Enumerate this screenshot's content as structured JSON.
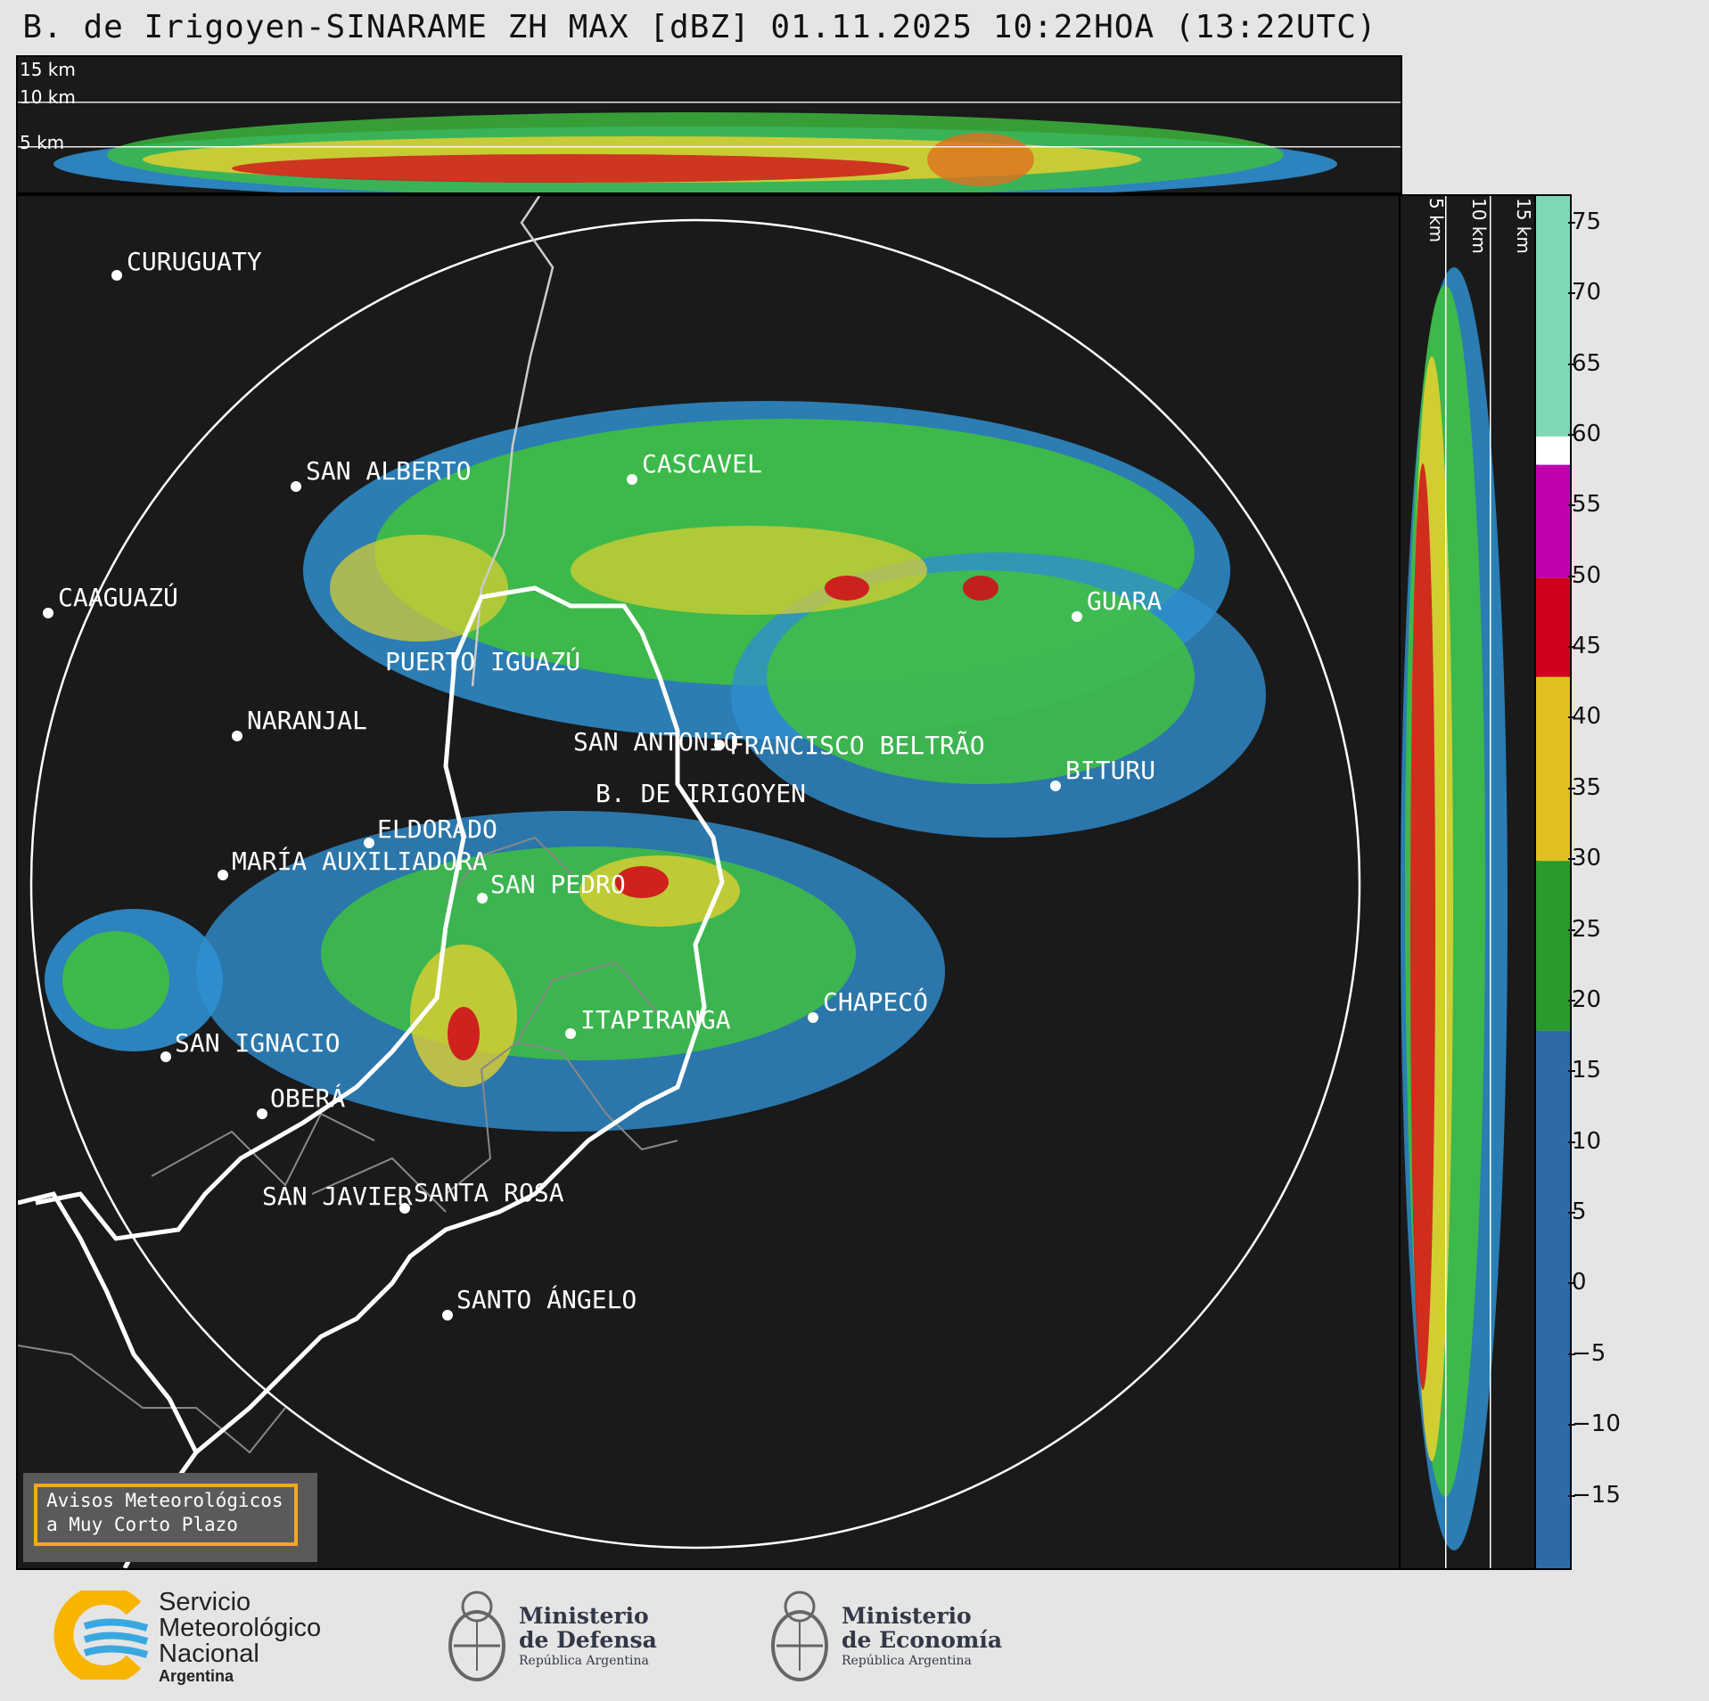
{
  "title": "B. de Irigoyen-SINARAME ZH MAX [dBZ] 01.11.2025 10:22HOA (13:22UTC)",
  "top_panel": {
    "altitude_labels": [
      "15 km",
      "10 km",
      "5 km"
    ]
  },
  "side_panel": {
    "altitude_labels": [
      "5 km",
      "10 km",
      "15 km"
    ]
  },
  "colorbar": {
    "unit": "dBZ",
    "ticks": [
      "75",
      "70",
      "65",
      "60",
      "55",
      "50",
      "45",
      "40",
      "35",
      "30",
      "25",
      "20",
      "15",
      "10",
      "5",
      "0",
      "−5",
      "−10",
      "−15"
    ],
    "min": -20,
    "max": 77,
    "bands": [
      {
        "from": 60,
        "to": 77,
        "color": "#7fd8b5"
      },
      {
        "from": 58,
        "to": 60,
        "color": "#ffffff"
      },
      {
        "from": 50,
        "to": 58,
        "color": "#c000b0"
      },
      {
        "from": 43,
        "to": 50,
        "color": "#d0001a"
      },
      {
        "from": 30,
        "to": 43,
        "color": "#e0c020"
      },
      {
        "from": 18,
        "to": 30,
        "color": "#2a9a2a"
      },
      {
        "from": -20,
        "to": 18,
        "color": "#2f6aa8"
      }
    ]
  },
  "map": {
    "cities": [
      {
        "name": "CURUGUATY"
      },
      {
        "name": "SAN ALBERTO"
      },
      {
        "name": "CASCAVEL"
      },
      {
        "name": "CAAGUAZÚ"
      },
      {
        "name": "GUARA"
      },
      {
        "name": "PUERTO IGUAZÚ"
      },
      {
        "name": "NARANJAL"
      },
      {
        "name": "SAN ANTONIO"
      },
      {
        "name": "FRANCISCO BELTRÃO"
      },
      {
        "name": "BITURU"
      },
      {
        "name": "B. DE IRIGOYEN"
      },
      {
        "name": "ELDORADO"
      },
      {
        "name": "MARÍA AUXILIADORA"
      },
      {
        "name": "SAN PEDRO"
      },
      {
        "name": "CHAPECÓ"
      },
      {
        "name": "ITAPIRANGA"
      },
      {
        "name": "SAN IGNACIO"
      },
      {
        "name": "OBERÁ"
      },
      {
        "name": "SAN JAVIER"
      },
      {
        "name": "SANTA ROSA"
      },
      {
        "name": "SANTO ÁNGELO"
      }
    ],
    "notice": {
      "line1": "Avisos Meteorológicos",
      "line2": "a Muy Corto Plazo"
    }
  },
  "logos": {
    "smn": {
      "line1": "Servicio",
      "line2": "Meteorológico",
      "line3": "Nacional",
      "line4": "Argentina"
    },
    "defensa": {
      "line1": "Ministerio",
      "line2": "de Defensa",
      "line3": "República Argentina"
    },
    "economia": {
      "line1": "Ministerio",
      "line2": "de Economía",
      "line3": "República Argentina"
    }
  },
  "colors": {
    "background": "#e5e5e5",
    "panel": "#1a1a1a",
    "notice_border": "#f5a623",
    "smn_yellow": "#f7b500",
    "smn_blue": "#3aa8e0"
  }
}
